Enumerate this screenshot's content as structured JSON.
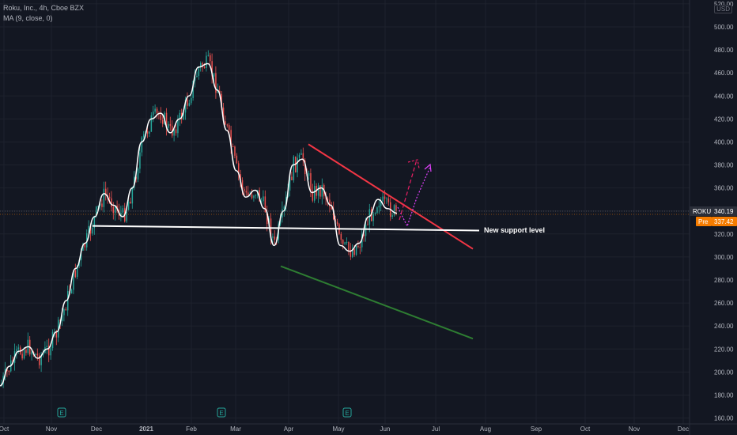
{
  "legend": {
    "symbol_line": "Roku, Inc., 4h, Cboe BZX",
    "ma_line": "MA (9, close, 0)"
  },
  "currency_badge": "USD",
  "price_tags": {
    "ticker": "ROKU",
    "last": "340.19",
    "pre_label": "Pre",
    "pre_value": "337.42"
  },
  "colors": {
    "background": "#131722",
    "up": "#26a69a",
    "down": "#ef5350",
    "ma": "#ffffff",
    "resistance": "#f23645",
    "lower_trend": "#2e7d32",
    "projection": "#e91e63",
    "last_price_tag": "#2a2e39",
    "pre_tag": "#f57c00"
  },
  "chart_data": {
    "type": "candlestick",
    "symbol": "ROKU",
    "interval": "4h",
    "exchange": "Cboe BZX",
    "x_tick_labels": [
      "Oct",
      "Nov",
      "Dec",
      "2021",
      "Feb",
      "Mar",
      "Apr",
      "May",
      "Jun",
      "Jul",
      "Aug",
      "Sep",
      "Oct",
      "Nov",
      "Dec"
    ],
    "y_tick_labels": [
      "160.00",
      "180.00",
      "200.00",
      "220.00",
      "240.00",
      "260.00",
      "280.00",
      "300.00",
      "320.00",
      "340.00",
      "360.00",
      "380.00",
      "400.00",
      "420.00",
      "440.00",
      "460.00",
      "480.00",
      "500.00",
      "520.00"
    ],
    "ylim": [
      158,
      523
    ],
    "grid": true,
    "earnings_markers": [
      {
        "label": "E",
        "month": "Nov 2020"
      },
      {
        "label": "E",
        "month": "Feb 2021"
      },
      {
        "label": "E",
        "month": "Apr 2021"
      }
    ],
    "ma_series": {
      "name": "MA (9, close, 0)",
      "points": [
        [
          "Oct 2020",
          188
        ],
        [
          "Oct 2020",
          205
        ],
        [
          "Oct 2020",
          218
        ],
        [
          "Nov 2020",
          222
        ],
        [
          "Nov 2020",
          212
        ],
        [
          "Nov 2020",
          220
        ],
        [
          "Nov 2020",
          235
        ],
        [
          "Dec 2020",
          262
        ],
        [
          "Dec 2020",
          290
        ],
        [
          "Dec 2020",
          312
        ],
        [
          "Dec 2020",
          335
        ],
        [
          "Dec 2020",
          355
        ],
        [
          "Jan 2021",
          345
        ],
        [
          "Jan 2021",
          335
        ],
        [
          "Jan 2021",
          360
        ],
        [
          "Jan 2021",
          400
        ],
        [
          "Jan 2021",
          420
        ],
        [
          "Feb 2021",
          425
        ],
        [
          "Feb 2021",
          408
        ],
        [
          "Feb 2021",
          420
        ],
        [
          "Feb 2021",
          440
        ],
        [
          "Feb 2021",
          465
        ],
        [
          "Feb 2021",
          468
        ],
        [
          "Mar 2021",
          445
        ],
        [
          "Mar 2021",
          410
        ],
        [
          "Mar 2021",
          375
        ],
        [
          "Mar 2021",
          352
        ],
        [
          "Mar 2021",
          358
        ],
        [
          "Mar 2021",
          342
        ],
        [
          "Mar 2021",
          310
        ],
        [
          "Apr 2021",
          340
        ],
        [
          "Apr 2021",
          380
        ],
        [
          "Apr 2021",
          385
        ],
        [
          "Apr 2021",
          356
        ],
        [
          "Apr 2021",
          360
        ],
        [
          "Apr 2021",
          345
        ],
        [
          "May 2021",
          310
        ],
        [
          "May 2021",
          305
        ],
        [
          "May 2021",
          312
        ],
        [
          "May 2021",
          335
        ],
        [
          "Jun 2021",
          350
        ],
        [
          "Jun 2021",
          342
        ],
        [
          "Jun 2021",
          338
        ]
      ]
    },
    "drawings": [
      {
        "name": "resistance-trendline",
        "from": [
          "Apr 2021",
          398
        ],
        "to": [
          "Jul 2021",
          307
        ]
      },
      {
        "name": "support-trendline",
        "from": [
          "Mar 2021",
          292
        ],
        "to": [
          "Jul 2021",
          229
        ]
      },
      {
        "name": "support-level",
        "from": [
          "Dec 2020",
          327
        ],
        "to": [
          "Jul 2021",
          323
        ]
      }
    ],
    "annotations": [
      {
        "text": "New support level",
        "price": 323
      }
    ],
    "last_price": 340.19,
    "premarket_price": 337.42
  }
}
